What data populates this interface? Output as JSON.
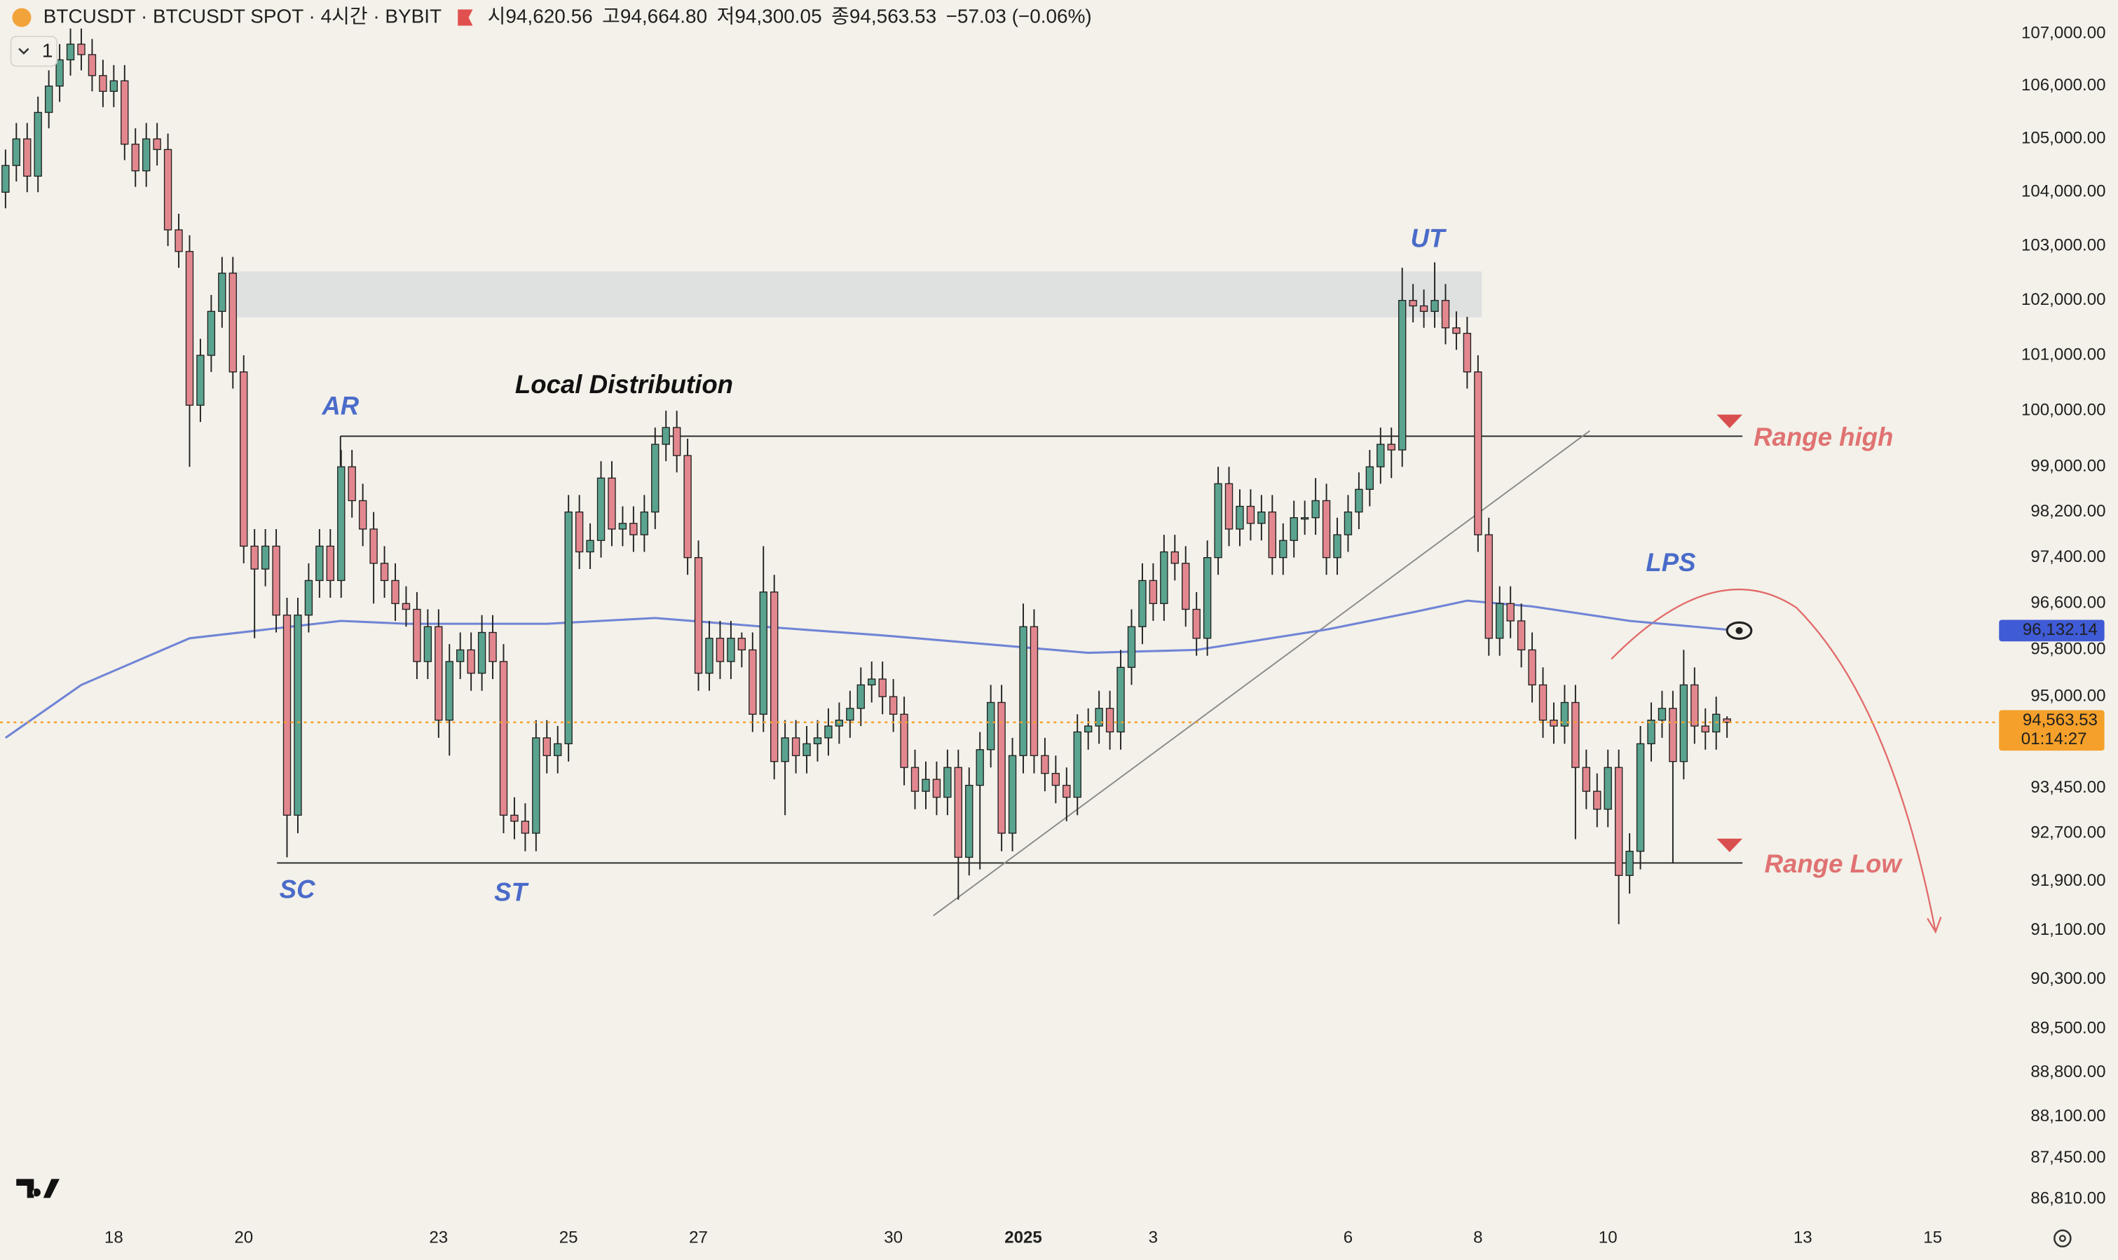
{
  "chart_data": {
    "type": "candlestick",
    "title": "BTCUSDT · BTCUSDT SPOT · 4시간 · BYBIT",
    "legend_values": [
      "시94,620.56",
      "고94,664.80",
      "저94,300.05",
      "종94,563.53",
      "−57.03 (−0.06%)"
    ],
    "interval_badge": "1",
    "up_color": "#5aa38f",
    "down_color": "#e3878e",
    "log": true,
    "ylim": [
      86450,
      107650
    ],
    "yticks": [
      {
        "value": 107000,
        "label": "107,000.00"
      },
      {
        "value": 106000,
        "label": "106,000.00"
      },
      {
        "value": 105000,
        "label": "105,000.00"
      },
      {
        "value": 104000,
        "label": "104,000.00"
      },
      {
        "value": 103000,
        "label": "103,000.00"
      },
      {
        "value": 102000,
        "label": "102,000.00"
      },
      {
        "value": 101000,
        "label": "101,000.00"
      },
      {
        "value": 100000,
        "label": "100,000.00"
      },
      {
        "value": 99000,
        "label": "99,000.00"
      },
      {
        "value": 98200,
        "label": "98,200.00"
      },
      {
        "value": 97400,
        "label": "97,400.00"
      },
      {
        "value": 96600,
        "label": "96,600.00"
      },
      {
        "value": 95800,
        "label": "95,800.00"
      },
      {
        "value": 95000,
        "label": "95,000.00"
      },
      {
        "value": 93450,
        "label": "93,450.00"
      },
      {
        "value": 92700,
        "label": "92,700.00"
      },
      {
        "value": 91900,
        "label": "91,900.00"
      },
      {
        "value": 91100,
        "label": "91,100.00"
      },
      {
        "value": 90300,
        "label": "90,300.00"
      },
      {
        "value": 89500,
        "label": "89,500.00"
      },
      {
        "value": 88800,
        "label": "88,800.00"
      },
      {
        "value": 88100,
        "label": "88,100.00"
      },
      {
        "value": 87450,
        "label": "87,450.00"
      },
      {
        "value": 86810,
        "label": "86,810.00"
      }
    ],
    "categories": [
      null,
      null,
      null,
      null,
      null,
      null,
      null,
      null,
      null,
      null,
      "18",
      null,
      null,
      null,
      null,
      null,
      null,
      null,
      null,
      null,
      null,
      null,
      "20",
      null,
      null,
      null,
      null,
      null,
      null,
      null,
      null,
      null,
      null,
      null,
      null,
      null,
      null,
      null,
      null,
      null,
      "23",
      null,
      null,
      null,
      null,
      null,
      null,
      null,
      null,
      null,
      null,
      null,
      "25",
      null,
      null,
      null,
      null,
      null,
      null,
      null,
      null,
      null,
      null,
      null,
      "27",
      null,
      null,
      null,
      null,
      null,
      null,
      null,
      null,
      null,
      null,
      null,
      null,
      null,
      null,
      null,
      null,
      null,
      "30",
      null,
      null,
      null,
      null,
      null,
      null,
      null,
      null,
      null,
      null,
      null,
      "2025",
      null,
      null,
      null,
      null,
      null,
      null,
      null,
      null,
      null,
      null,
      null,
      "3",
      null,
      null,
      null,
      null,
      null,
      null,
      null,
      null,
      null,
      null,
      null,
      null,
      null,
      null,
      null,
      null,
      null,
      "6",
      null,
      null,
      null,
      null,
      null,
      null,
      null,
      null,
      null,
      null,
      null,
      "8",
      null,
      null,
      null,
      null,
      null,
      null,
      null,
      null,
      null,
      null,
      null,
      "10",
      null,
      null,
      null,
      null,
      null,
      null,
      null,
      null,
      null,
      null,
      null,
      null,
      null,
      null,
      null,
      null,
      null,
      "13",
      null,
      null,
      null,
      null,
      null,
      null,
      null,
      null,
      null,
      null,
      null,
      "15",
      null,
      null,
      null,
      null,
      null
    ],
    "open": [
      104000,
      104500,
      105000,
      104300,
      105500,
      106000,
      106500,
      106800,
      106600,
      106200,
      105900,
      106100,
      104900,
      104400,
      105000,
      104800,
      103300,
      102900,
      100100,
      101000,
      101800,
      102500,
      100700,
      97600,
      97200,
      97600,
      96400,
      93000,
      96400,
      97000,
      97600,
      97000,
      99000,
      98400,
      97900,
      97300,
      97000,
      96600,
      96500,
      95600,
      96200,
      94600,
      95600,
      95800,
      95400,
      96100,
      95600,
      93000,
      92900,
      92700,
      94300,
      94000,
      94200,
      98200,
      97500,
      97700,
      98800,
      97900,
      98000,
      97800,
      98200,
      99400,
      99700,
      99200,
      97400,
      95400,
      96000,
      95600,
      96000,
      95800,
      94700,
      96800,
      93900,
      94300,
      94000,
      94200,
      94300,
      94500,
      94600,
      94800,
      95200,
      95300,
      95000,
      94700,
      93800,
      93400,
      93600,
      93300,
      93800,
      92300,
      93500,
      94100,
      94900,
      92700,
      94000,
      96200,
      94000,
      93700,
      93500,
      93300,
      94400,
      94500,
      94800,
      94400,
      95500,
      96200,
      97000,
      96600,
      97500,
      97300,
      96500,
      96000,
      97400,
      98700,
      97900,
      98300,
      98000,
      98200,
      97400,
      97700,
      98100,
      98100,
      98400,
      97400,
      97800,
      98200,
      98600,
      99000,
      99400,
      99300,
      102000,
      101900,
      101800,
      102000,
      101500,
      101400,
      100700,
      97800,
      96000,
      96600,
      96300,
      95800,
      95200,
      94600,
      94500,
      94900,
      93800,
      93400,
      93100,
      93800,
      92000,
      92400,
      94200,
      94600,
      94800,
      93900,
      95200,
      94500,
      94400,
      94620.56,
      null,
      null,
      null,
      null,
      null,
      null,
      null,
      null,
      null,
      null,
      null,
      null,
      null,
      null,
      null,
      null,
      null,
      null,
      null,
      null,
      null,
      null,
      null,
      null
    ],
    "high": [
      104800,
      105300,
      105300,
      105800,
      106300,
      106800,
      107100,
      107100,
      106900,
      106500,
      106400,
      106400,
      105200,
      105300,
      105300,
      105100,
      103600,
      103200,
      101300,
      102100,
      102800,
      102800,
      101000,
      97900,
      97900,
      97900,
      96700,
      96700,
      97300,
      97900,
      97900,
      99300,
      99300,
      98700,
      98200,
      97600,
      97300,
      96900,
      96800,
      96500,
      96500,
      95900,
      96100,
      96100,
      96400,
      96400,
      95900,
      93300,
      93200,
      94600,
      94600,
      94500,
      98500,
      98500,
      98000,
      99100,
      99100,
      98300,
      98300,
      98500,
      99700,
      100000,
      100000,
      99500,
      97700,
      96300,
      96300,
      96300,
      96100,
      96100,
      97600,
      97100,
      94600,
      94600,
      94500,
      94600,
      94800,
      94900,
      95100,
      95500,
      95600,
      95600,
      95300,
      95000,
      94100,
      93900,
      93900,
      94100,
      94100,
      93800,
      94400,
      95200,
      95200,
      94300,
      96600,
      96500,
      94300,
      94000,
      93800,
      94700,
      94800,
      95100,
      95100,
      95800,
      96500,
      97300,
      97300,
      97800,
      97800,
      97600,
      96800,
      97700,
      99000,
      99000,
      98600,
      98600,
      98500,
      98500,
      98000,
      98400,
      98400,
      98800,
      98700,
      98100,
      98500,
      98900,
      99300,
      99700,
      99700,
      102600,
      102300,
      102200,
      102700,
      102300,
      101800,
      101700,
      101000,
      98100,
      96900,
      96900,
      96600,
      96100,
      95500,
      94900,
      95200,
      95200,
      94100,
      93700,
      94100,
      94100,
      92700,
      94500,
      94900,
      95100,
      95100,
      95800,
      95500,
      94800,
      95000,
      94664.8,
      null,
      null,
      null,
      null,
      null,
      null,
      null,
      null,
      null,
      null,
      null,
      null,
      null,
      null,
      null,
      null,
      null,
      null,
      null,
      null,
      null,
      null,
      null,
      null
    ],
    "low": [
      103700,
      104200,
      104000,
      104000,
      105200,
      105700,
      106200,
      106300,
      105900,
      105600,
      105600,
      104600,
      104100,
      104100,
      104500,
      103000,
      102600,
      99000,
      99800,
      100700,
      101500,
      100400,
      97300,
      96000,
      96900,
      96100,
      92300,
      92700,
      96100,
      96700,
      96700,
      96700,
      98100,
      97600,
      96600,
      96700,
      96300,
      96200,
      95300,
      95300,
      94300,
      94000,
      95300,
      95100,
      95100,
      95300,
      92700,
      92600,
      92400,
      92400,
      93700,
      93700,
      93900,
      97200,
      97200,
      97400,
      97600,
      97600,
      97500,
      97500,
      97900,
      99100,
      98900,
      97100,
      95100,
      95100,
      95300,
      95300,
      95500,
      94400,
      94400,
      93600,
      93000,
      93700,
      93700,
      93900,
      94000,
      94200,
      94300,
      94500,
      94900,
      94700,
      94400,
      93500,
      93100,
      93100,
      93000,
      93000,
      91600,
      92000,
      92100,
      93800,
      92400,
      92400,
      93700,
      93700,
      93400,
      93200,
      92900,
      93000,
      94100,
      94200,
      94100,
      94100,
      95200,
      95900,
      96300,
      96300,
      97000,
      96200,
      95700,
      95700,
      97100,
      97600,
      97600,
      97700,
      97700,
      97100,
      97100,
      97400,
      97800,
      97800,
      97100,
      97100,
      97500,
      97900,
      98300,
      98700,
      98800,
      99000,
      101600,
      101500,
      101500,
      101200,
      101100,
      100400,
      97500,
      95700,
      95700,
      96000,
      95500,
      94900,
      94300,
      94200,
      94200,
      92600,
      93100,
      92800,
      92800,
      91200,
      91700,
      92100,
      93900,
      94300,
      92200,
      93600,
      94200,
      94100,
      94100,
      94300.05,
      null,
      null,
      null,
      null,
      null,
      null,
      null,
      null,
      null,
      null,
      null,
      null,
      null,
      null,
      null,
      null,
      null,
      null,
      null,
      null,
      null,
      null,
      null,
      null
    ],
    "close": [
      104500,
      105000,
      104300,
      105500,
      106000,
      106500,
      106800,
      106600,
      106200,
      105900,
      106100,
      104900,
      104400,
      105000,
      104800,
      103300,
      102900,
      100100,
      101000,
      101800,
      102500,
      100700,
      97600,
      97200,
      97600,
      96400,
      93000,
      96400,
      97000,
      97600,
      97000,
      99000,
      98400,
      97900,
      97300,
      97000,
      96600,
      96500,
      95600,
      96200,
      94600,
      95600,
      95800,
      95400,
      96100,
      95600,
      93000,
      92900,
      92700,
      94300,
      94000,
      94200,
      98200,
      97500,
      97700,
      98800,
      97900,
      98000,
      97800,
      98200,
      99400,
      99700,
      99200,
      97400,
      95400,
      96000,
      95600,
      96000,
      95800,
      94700,
      96800,
      93900,
      94300,
      94000,
      94200,
      94300,
      94500,
      94600,
      94800,
      95200,
      95300,
      95000,
      94700,
      93800,
      93400,
      93600,
      93300,
      93800,
      92300,
      93500,
      94100,
      94900,
      92700,
      94000,
      96200,
      94000,
      93700,
      93500,
      93300,
      94400,
      94500,
      94800,
      94400,
      95500,
      96200,
      97000,
      96600,
      97500,
      97300,
      96500,
      96000,
      97400,
      98700,
      97900,
      98300,
      98000,
      98200,
      97400,
      97700,
      98100,
      98100,
      98400,
      97400,
      97800,
      98200,
      98600,
      99000,
      99400,
      99300,
      102000,
      101900,
      101800,
      102000,
      101500,
      101400,
      100700,
      97800,
      96000,
      96600,
      96300,
      95800,
      95200,
      94600,
      94500,
      94900,
      93800,
      93400,
      93100,
      93800,
      92000,
      92400,
      94200,
      94600,
      94800,
      93900,
      95200,
      94500,
      94400,
      94700,
      94563.53,
      null,
      null,
      null,
      null,
      null,
      null,
      null,
      null,
      null,
      null,
      null,
      null,
      null,
      null,
      null,
      null,
      null,
      null,
      null,
      null,
      null,
      null,
      null,
      null
    ],
    "last_price_label": "94,563.53",
    "countdown": "01:14:27",
    "price_line_color": "#f5a02a",
    "ma": {
      "color": "#7084d6",
      "x": [
        0,
        7,
        17,
        31,
        37,
        50,
        60,
        70,
        81,
        100,
        110,
        122,
        130,
        135,
        141,
        150,
        160
      ],
      "values": [
        94300,
        95200,
        96000,
        96300,
        96250,
        96250,
        96350,
        96200,
        96050,
        95750,
        95800,
        96150,
        96450,
        96650,
        96550,
        96300,
        96132.14
      ],
      "last_label": "96,132.14"
    },
    "annotations": {
      "ar": "AR",
      "sc": "SC",
      "st": "ST",
      "ut": "UT",
      "lps": "LPS",
      "distribution": "Local Distribution",
      "range_high": "Range high",
      "range_low": "Range Low"
    }
  }
}
